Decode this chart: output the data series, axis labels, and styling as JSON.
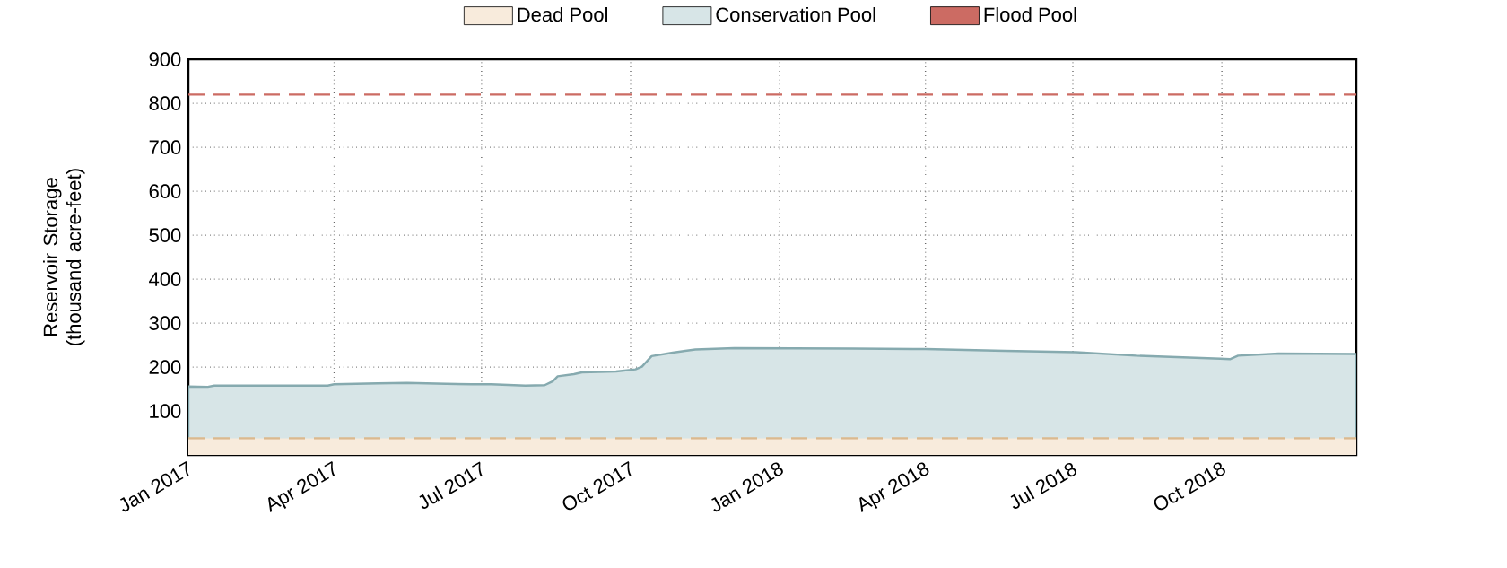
{
  "chart_data": {
    "type": "area",
    "ylabel": "Reservoir Storage (thousand acre-feet)",
    "xlim": [
      "2017-01-01",
      "2018-12-23"
    ],
    "ylim": [
      0,
      900
    ],
    "xticks": [
      {
        "value": "2017-01-01",
        "label": "Jan 2017"
      },
      {
        "value": "2017-04-01",
        "label": "Apr 2017"
      },
      {
        "value": "2017-07-01",
        "label": "Jul 2017"
      },
      {
        "value": "2017-10-01",
        "label": "Oct 2017"
      },
      {
        "value": "2018-01-01",
        "label": "Jan 2018"
      },
      {
        "value": "2018-04-01",
        "label": "Apr 2018"
      },
      {
        "value": "2018-07-01",
        "label": "Jul 2018"
      },
      {
        "value": "2018-10-01",
        "label": "Oct 2018"
      }
    ],
    "yticks": [
      100,
      200,
      300,
      400,
      500,
      600,
      700,
      800,
      900
    ],
    "grid": true,
    "legend": "top",
    "bands": [
      {
        "axis": "y",
        "from": 0,
        "to": 38,
        "label": "Dead Pool",
        "color": "#f8ebdc"
      }
    ],
    "ref_lines": [
      {
        "axis": "y",
        "value": 820,
        "label": "Flood Pool",
        "color": "#cc6b63",
        "line_style": "dashed"
      },
      {
        "axis": "y",
        "value": 38,
        "color": "#dbb98e",
        "line_style": "dashed"
      }
    ],
    "series": [
      {
        "name": "Conservation Pool",
        "color": "#d7e5e7",
        "x": [
          "2017-01-01",
          "2017-01-13",
          "2017-01-17",
          "2017-03-28",
          "2017-04-01",
          "2017-04-28",
          "2017-05-16",
          "2017-06-09",
          "2017-06-25",
          "2017-07-07",
          "2017-07-28",
          "2017-08-09",
          "2017-08-14",
          "2017-08-17",
          "2017-08-27",
          "2017-09-01",
          "2017-09-22",
          "2017-10-04",
          "2017-10-08",
          "2017-10-14",
          "2017-10-27",
          "2017-11-10",
          "2017-12-04",
          "2018-02-15",
          "2018-04-01",
          "2018-05-20",
          "2018-07-03",
          "2018-08-09",
          "2018-09-30",
          "2018-10-06",
          "2018-10-11",
          "2018-11-05",
          "2018-12-23"
        ],
        "values": [
          156,
          155,
          158,
          158,
          161,
          163,
          164,
          162,
          161,
          161,
          158,
          159,
          168,
          179,
          184,
          188,
          190,
          195,
          201,
          225,
          233,
          240,
          243,
          242,
          241,
          237,
          234,
          226,
          219,
          218,
          226,
          231,
          230
        ]
      }
    ]
  }
}
